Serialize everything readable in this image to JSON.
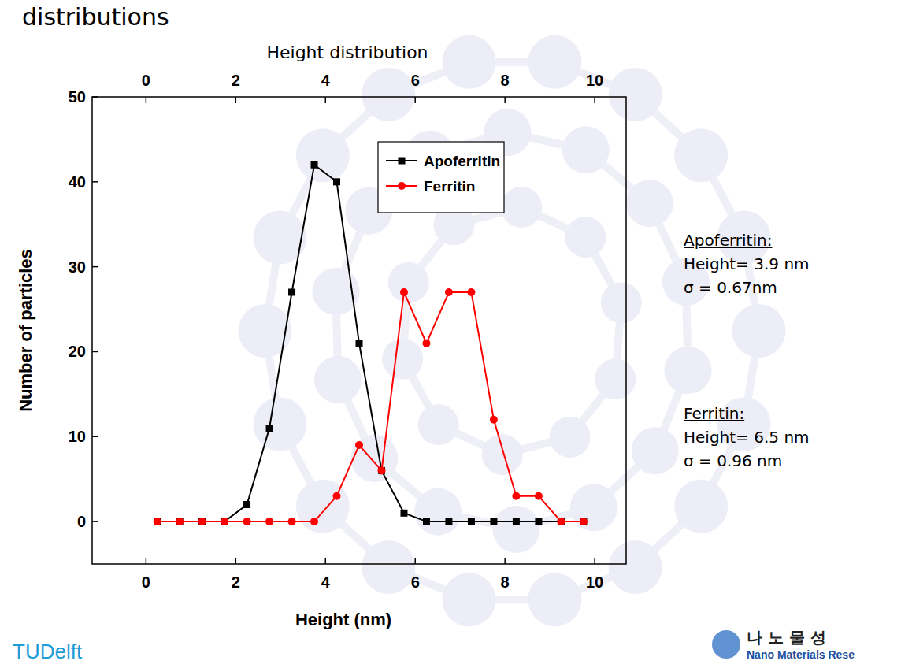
{
  "chart_data": {
    "type": "line",
    "title": "distributions",
    "subtitle": "Height distribution",
    "x_label": "Height (nm)",
    "y_label": "Number of particles",
    "x": [
      0.25,
      0.75,
      1.25,
      1.75,
      2.25,
      2.75,
      3.25,
      3.75,
      4.25,
      4.75,
      5.25,
      5.75,
      6.25,
      6.75,
      7.25,
      7.75,
      8.25,
      8.75,
      9.25,
      9.75
    ],
    "series": [
      {
        "name": "Apoferritin",
        "color": "#000000",
        "marker": "square",
        "values": [
          0,
          0,
          0,
          0,
          2,
          11,
          27,
          42,
          40,
          21,
          6,
          1,
          0,
          0,
          0,
          0,
          0,
          0,
          0,
          0
        ]
      },
      {
        "name": "Ferritin",
        "color": "#ff0000",
        "marker": "circle",
        "values": [
          0,
          0,
          0,
          0,
          0,
          0,
          0,
          0,
          3,
          9,
          6,
          27,
          21,
          27,
          27,
          12,
          3,
          3,
          0,
          0
        ]
      }
    ],
    "xlim": [
      -1.2,
      10.7
    ],
    "xticks": [
      0,
      2,
      4,
      6,
      8,
      10
    ],
    "ylim": [
      -5,
      50
    ],
    "yticks": [
      0,
      10,
      20,
      30,
      40,
      50
    ],
    "grid": false,
    "legend": "top-right",
    "annotations": [
      "Apoferritin:",
      "Height= 3.9 nm",
      "σ = 0.67nm",
      "Ferritin:",
      "Height= 6.5 nm",
      "σ = 0.96 nm"
    ],
    "logos": [
      "TUDelft",
      "나 노 물 성",
      "Nano Materials Rese"
    ]
  }
}
